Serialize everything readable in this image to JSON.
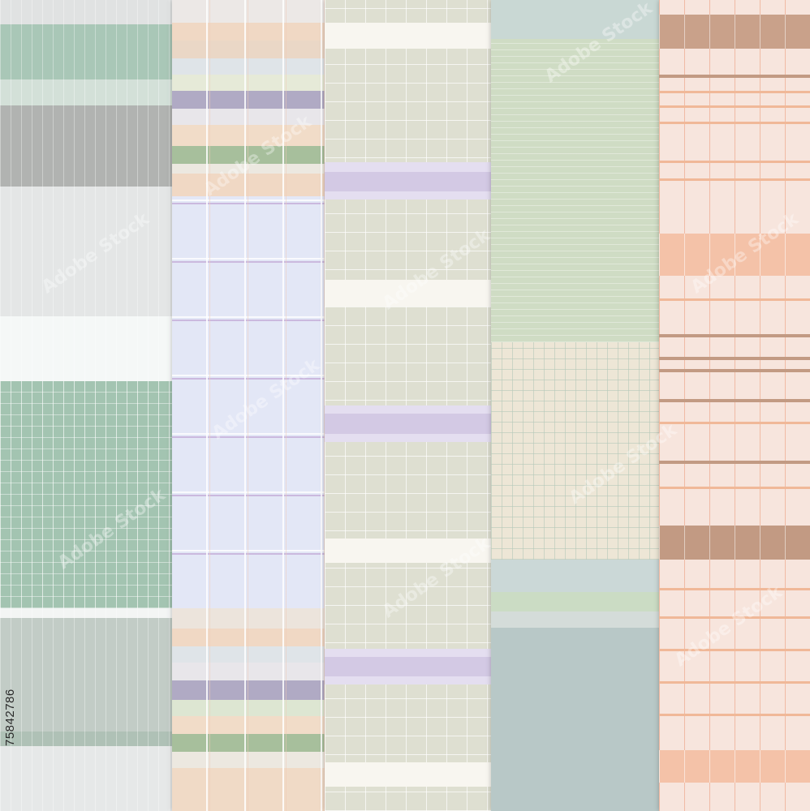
{
  "stock_id": "75842786",
  "watermark_text": "Adobe Stock",
  "strips": [
    {
      "name": "strip-1",
      "theme": "sage-gray"
    },
    {
      "name": "strip-2",
      "theme": "lavender-plaid"
    },
    {
      "name": "strip-3",
      "theme": "khaki-grid"
    },
    {
      "name": "strip-4",
      "theme": "sage-blue"
    },
    {
      "name": "strip-5",
      "theme": "peach-tartan"
    }
  ],
  "colors": {
    "sage": "#9fbfae",
    "sage_light": "#d5e4da",
    "gray": "#aeb1ae",
    "pale_gray": "#e4e6e6",
    "lavender_bg": "#e3e7f6",
    "lavender": "#a9a3c3",
    "khaki": "#dedfd1",
    "cream": "#f8f6f0",
    "lilac": "#d6cde6",
    "mint": "#cfdcc4",
    "blue_gray": "#b7c7c6",
    "beige": "#ede6d6",
    "peach_bg": "#f7e5dd",
    "peach": "#f4c2a8",
    "brown": "#c29a83"
  }
}
